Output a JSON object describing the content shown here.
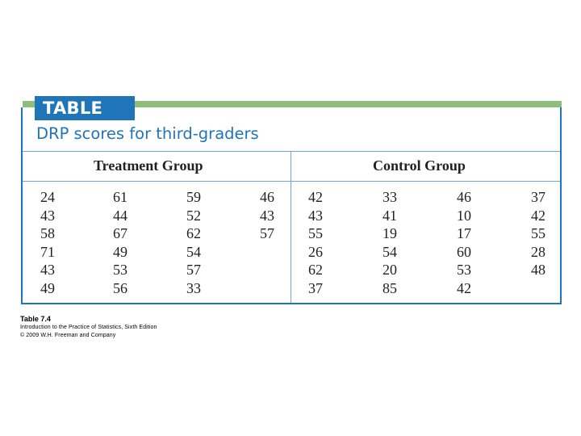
{
  "table": {
    "number_label": "TABLE 7.4",
    "caption": "DRP scores for third-graders",
    "treatment_header": "Treatment Group",
    "control_header": "Control Group",
    "treatment_columns": [
      [
        "24",
        "43",
        "58",
        "71",
        "43",
        "49"
      ],
      [
        "61",
        "44",
        "67",
        "49",
        "53",
        "56"
      ],
      [
        "59",
        "52",
        "62",
        "54",
        "57",
        "33"
      ],
      [
        "46",
        "43",
        "57"
      ]
    ],
    "control_columns": [
      [
        "42",
        "43",
        "55",
        "26",
        "62",
        "37"
      ],
      [
        "33",
        "41",
        "19",
        "54",
        "20",
        "85"
      ],
      [
        "46",
        "10",
        "17",
        "60",
        "53",
        "42"
      ],
      [
        "37",
        "42",
        "55",
        "28",
        "48"
      ]
    ],
    "colors": {
      "accent_blue": "#1f75b8",
      "accent_green": "#8dbf7a",
      "rule_blue": "#6fa8d6"
    }
  },
  "footer": {
    "title": "Table 7.4",
    "source": "Introduction to the Practice of Statistics, Sixth Edition",
    "copyright": "© 2009 W.H. Freeman and Company"
  }
}
